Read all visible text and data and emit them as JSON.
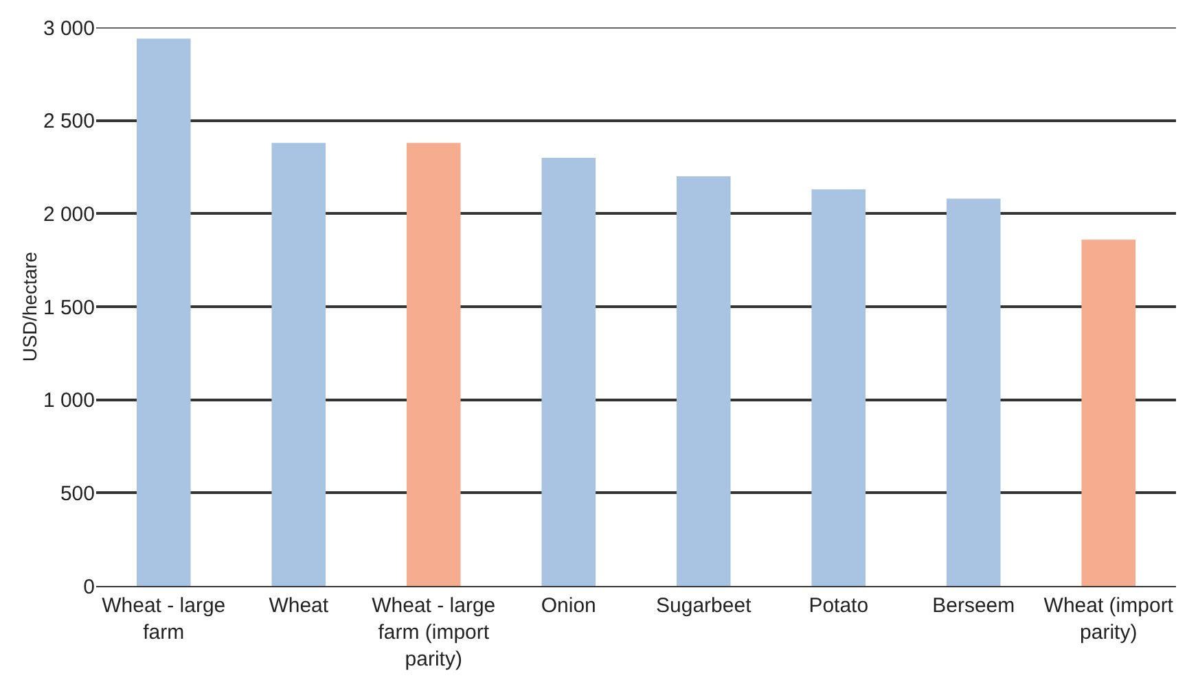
{
  "chart_data": {
    "type": "bar",
    "ylabel": "USD/hectare",
    "categories": [
      "Wheat - large farm",
      "Wheat",
      "Wheat - large farm (import parity)",
      "Onion",
      "Sugarbeet",
      "Potato",
      "Berseem",
      "Wheat (import parity)"
    ],
    "values": [
      2940,
      2380,
      2380,
      2300,
      2200,
      2130,
      2080,
      1860
    ],
    "colors": [
      "#a9c3e3",
      "#a9c3e3",
      "#f5ac8f",
      "#a9c3e3",
      "#a9c3e3",
      "#a9c3e3",
      "#a9c3e3",
      "#f5ac8f"
    ],
    "ylim": [
      0,
      3000
    ],
    "yticks": [
      0,
      500,
      {
        "value": 1000,
        "label": "1 000"
      },
      {
        "value": 1500,
        "label": "1 500"
      },
      {
        "value": 2000,
        "label": "2 000"
      },
      {
        "value": 2500,
        "label": "2 500"
      },
      {
        "value": 3000,
        "label": "3 000"
      }
    ],
    "grid": "y"
  }
}
